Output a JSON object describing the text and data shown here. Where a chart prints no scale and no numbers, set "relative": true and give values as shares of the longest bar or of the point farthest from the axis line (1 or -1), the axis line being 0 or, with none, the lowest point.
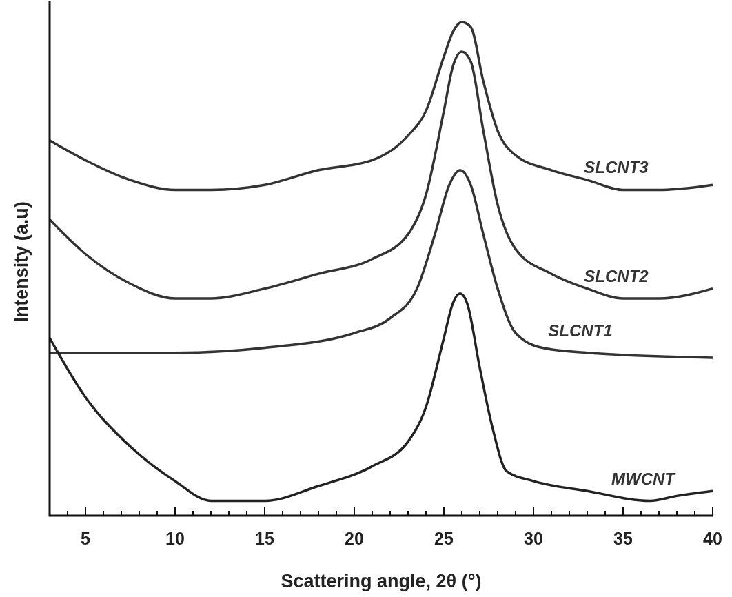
{
  "chart_data": {
    "type": "line",
    "relative": true,
    "xlabel": "Scattering angle, 2θ (°)",
    "ylabel": "Intensity (a.u)",
    "xlim": [
      3,
      40
    ],
    "xticks": [
      {
        "value": 3,
        "label": null
      },
      {
        "value": 4,
        "label": null
      },
      5,
      {
        "value": 6,
        "label": null
      },
      {
        "value": 7,
        "label": null
      },
      {
        "value": 8,
        "label": null
      },
      {
        "value": 9,
        "label": null
      },
      10,
      {
        "value": 11,
        "label": null
      },
      {
        "value": 12,
        "label": null
      },
      {
        "value": 13,
        "label": null
      },
      {
        "value": 14,
        "label": null
      },
      15,
      {
        "value": 16,
        "label": null
      },
      {
        "value": 17,
        "label": null
      },
      {
        "value": 18,
        "label": null
      },
      {
        "value": 19,
        "label": null
      },
      20,
      {
        "value": 21,
        "label": null
      },
      {
        "value": 22,
        "label": null
      },
      {
        "value": 23,
        "label": null
      },
      {
        "value": 24,
        "label": null
      },
      25,
      {
        "value": 26,
        "label": null
      },
      {
        "value": 27,
        "label": null
      },
      {
        "value": 28,
        "label": null
      },
      {
        "value": 29,
        "label": null
      },
      30,
      {
        "value": 31,
        "label": null
      },
      {
        "value": 32,
        "label": null
      },
      {
        "value": 33,
        "label": null
      },
      {
        "value": 34,
        "label": null
      },
      35,
      {
        "value": 36,
        "label": null
      },
      {
        "value": 37,
        "label": null
      },
      {
        "value": 38,
        "label": null
      },
      {
        "value": 39,
        "label": null
      },
      40
    ],
    "grid": false,
    "line_style": "solid",
    "marker": "none",
    "series": [
      {
        "name": "SLCNT3",
        "color": "#333333",
        "x": [
          3,
          5,
          7.5,
          10,
          12,
          15,
          18,
          21,
          23,
          24,
          25,
          25.5,
          26,
          26.5,
          27.2,
          28,
          29,
          31,
          33,
          35,
          37,
          40
        ],
        "values": [
          0.76,
          0.72,
          0.68,
          0.66,
          0.66,
          0.67,
          0.7,
          0.72,
          0.77,
          0.82,
          0.93,
          0.98,
          1,
          0.99,
          0.88,
          0.78,
          0.73,
          0.7,
          0.68,
          0.66,
          0.66,
          0.67
        ]
      },
      {
        "name": "SLCNT2",
        "color": "#333333",
        "x": [
          3,
          5,
          7.5,
          10,
          12,
          15,
          18,
          21,
          23,
          24,
          25,
          25.5,
          26,
          26.5,
          27.2,
          28,
          29,
          31,
          33,
          35,
          37,
          40
        ],
        "values": [
          0.6,
          0.53,
          0.47,
          0.44,
          0.44,
          0.46,
          0.49,
          0.52,
          0.57,
          0.65,
          0.82,
          0.91,
          0.94,
          0.92,
          0.78,
          0.63,
          0.54,
          0.49,
          0.46,
          0.44,
          0.44,
          0.46
        ]
      },
      {
        "name": "SLCNT1",
        "color": "#333333",
        "x": [
          3,
          10,
          15,
          20,
          22,
          23.5,
          24.5,
          25.3,
          25.9,
          26.5,
          27.2,
          28,
          29,
          30.5,
          33,
          40
        ],
        "values": [
          0.33,
          0.33,
          0.34,
          0.37,
          0.4,
          0.46,
          0.57,
          0.67,
          0.7,
          0.67,
          0.57,
          0.46,
          0.37,
          0.34,
          0.33,
          0.32
        ]
      },
      {
        "name": "MWCNT",
        "color": "#222222",
        "x": [
          3,
          5,
          7.5,
          10,
          12,
          13.5,
          15,
          18,
          21,
          23,
          24,
          25,
          25.5,
          25.9,
          26.3,
          27,
          27.7,
          28.5,
          30,
          33,
          36.5,
          38,
          40
        ],
        "values": [
          0.36,
          0.24,
          0.14,
          0.07,
          0.03,
          0.03,
          0.03,
          0.06,
          0.1,
          0.15,
          0.22,
          0.36,
          0.43,
          0.45,
          0.43,
          0.3,
          0.18,
          0.09,
          0.07,
          0.05,
          0.03,
          0.04,
          0.05
        ]
      }
    ]
  }
}
